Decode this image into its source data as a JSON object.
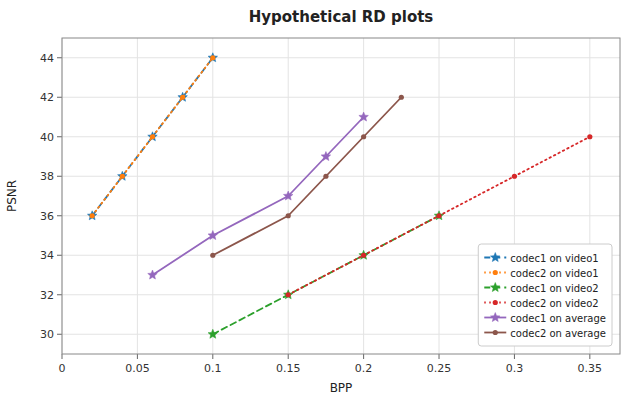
{
  "chart_data": {
    "type": "line",
    "title": "Hypothetical RD plots",
    "xlabel": "BPP",
    "ylabel": "PSNR",
    "xlim": [
      0.0,
      0.37
    ],
    "ylim": [
      29,
      45
    ],
    "xticks": [
      0,
      0.05,
      0.1,
      0.15,
      0.2,
      0.25,
      0.3,
      0.35
    ],
    "yticks": [
      30,
      32,
      34,
      36,
      38,
      40,
      42,
      44
    ],
    "grid": true,
    "legend": "lower-right",
    "series": [
      {
        "name": "codec1 on video1",
        "color": "#1f77b4",
        "line_style": "dashed",
        "marker": "star",
        "x": [
          0.02,
          0.04,
          0.06,
          0.08,
          0.1
        ],
        "values": [
          36.0,
          38.0,
          40.0,
          42.0,
          44.0
        ]
      },
      {
        "name": "codec2 on video1",
        "color": "#ff7f0e",
        "line_style": "dotted",
        "marker": "point",
        "x": [
          0.02,
          0.04,
          0.06,
          0.08,
          0.1
        ],
        "values": [
          36.0,
          38.0,
          40.0,
          42.0,
          44.0
        ]
      },
      {
        "name": "codec1 on video2",
        "color": "#2ca02c",
        "line_style": "dashed",
        "marker": "star",
        "x": [
          0.1,
          0.15,
          0.2,
          0.25
        ],
        "values": [
          30.0,
          32.0,
          34.0,
          36.0
        ]
      },
      {
        "name": "codec2 on video2",
        "color": "#d62728",
        "line_style": "dotted",
        "marker": "point",
        "x": [
          0.15,
          0.2,
          0.25,
          0.3,
          0.35
        ],
        "values": [
          32.0,
          34.0,
          36.0,
          38.0,
          40.0
        ]
      },
      {
        "name": "codec1 on average",
        "color": "#9467bd",
        "line_style": "solid",
        "marker": "star",
        "x": [
          0.06,
          0.1,
          0.15,
          0.175,
          0.2
        ],
        "values": [
          33.0,
          35.0,
          37.0,
          39.0,
          41.0
        ]
      },
      {
        "name": "codec2 on average",
        "color": "#8c564b",
        "line_style": "solid",
        "marker": "point",
        "x": [
          0.1,
          0.15,
          0.175,
          0.2,
          0.225
        ],
        "values": [
          34.0,
          36.0,
          38.0,
          40.0,
          42.0
        ]
      }
    ]
  }
}
